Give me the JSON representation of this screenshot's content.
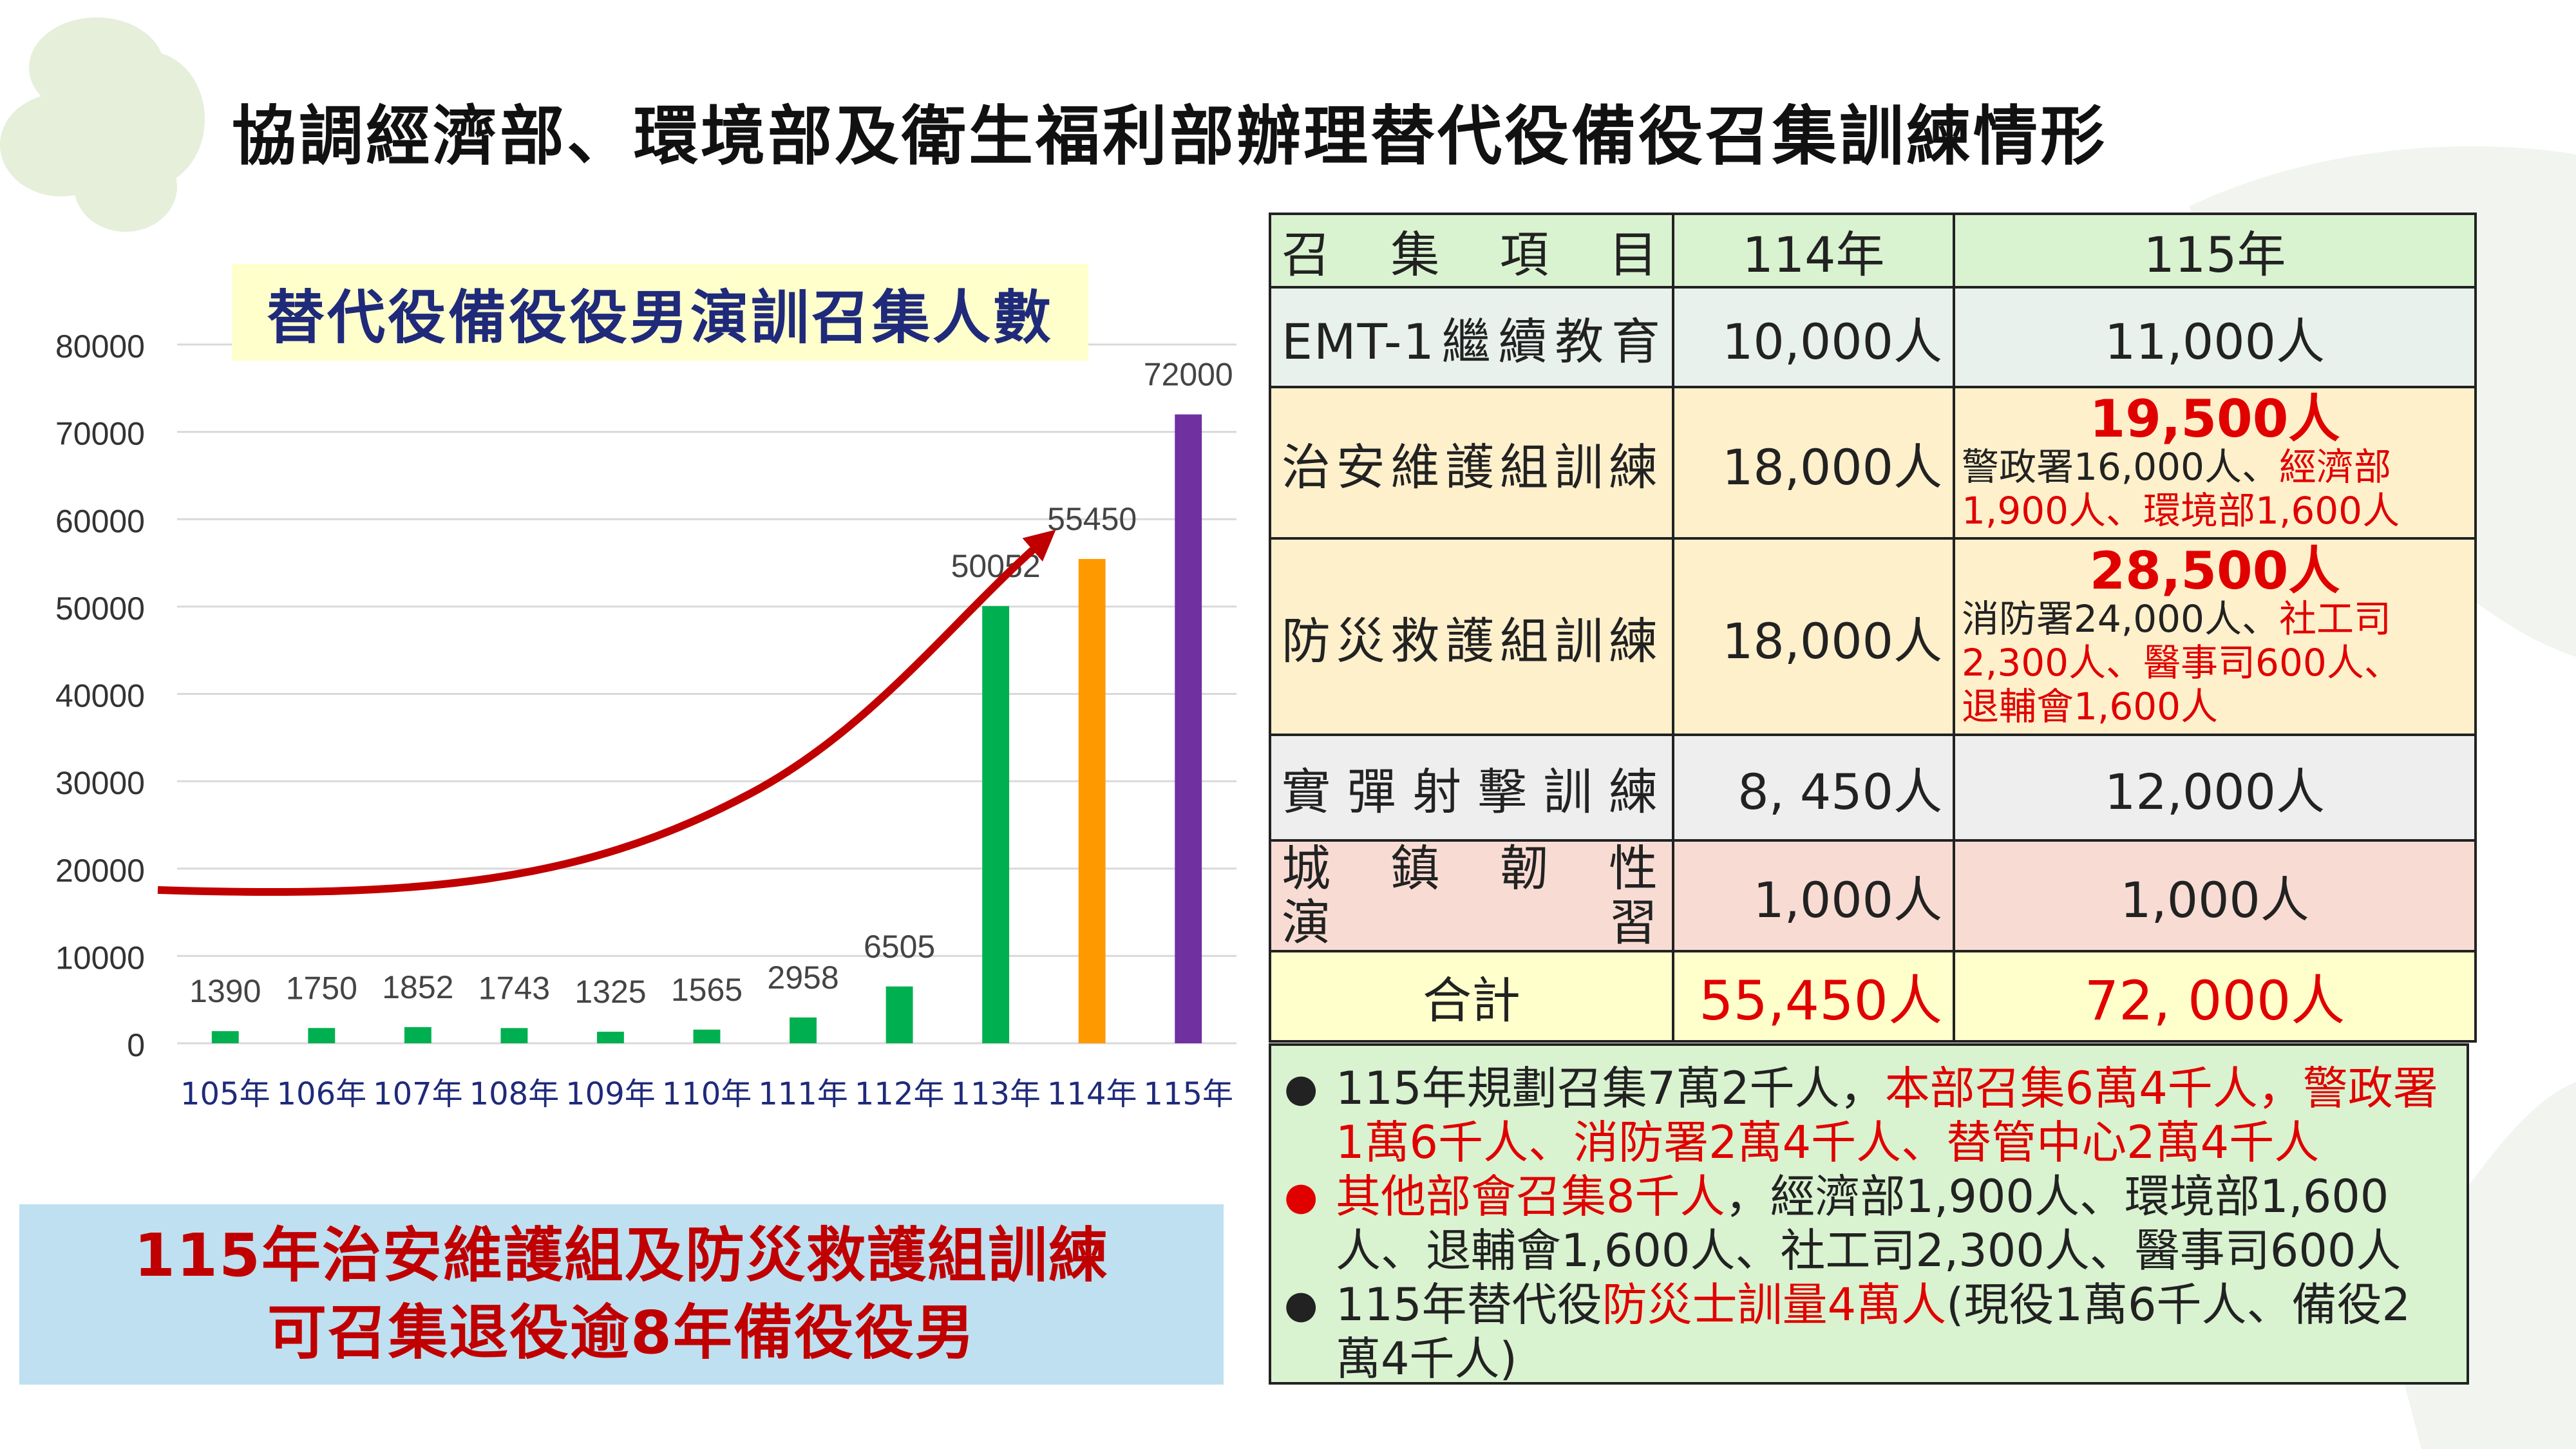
{
  "title": "協調經濟部、環境部及衛生福利部辦理替代役備役召集訓練情形",
  "chart_data": {
    "type": "bar",
    "title": "替代役備役役男演訓召集人數",
    "categories": [
      "105年",
      "106年",
      "107年",
      "108年",
      "109年",
      "110年",
      "111年",
      "112年",
      "113年",
      "114年",
      "115年"
    ],
    "values": [
      1390,
      1750,
      1852,
      1743,
      1325,
      1565,
      2958,
      6505,
      50052,
      55450,
      72000
    ],
    "bar_colors": [
      "#00b050",
      "#00b050",
      "#00b050",
      "#00b050",
      "#00b050",
      "#00b050",
      "#00b050",
      "#00b050",
      "#00b050",
      "#ff9900",
      "#7030a0"
    ],
    "ylim": [
      0,
      80000
    ],
    "yticks": [
      0,
      10000,
      20000,
      30000,
      40000,
      50000,
      60000,
      70000,
      80000
    ],
    "grid": true,
    "trend_arrow_color": "#c00000"
  },
  "summary": {
    "line1": "115年治安維護組及防災救護組訓練",
    "line2": "可召集退役逾8年備役役男"
  },
  "table": {
    "header": {
      "item": "召集項目",
      "y114": "114年",
      "y115": "115年"
    },
    "emt": {
      "item": "EMT-1繼續教育",
      "y114": "10,000人",
      "y115": "11,000人"
    },
    "law": {
      "item": "治安維護組訓練",
      "y114": "18,000人",
      "y115_total": "19,500人",
      "d1": "警政署16,000人、",
      "d2": "經濟部",
      "d3": "1,900人、環境部1,600人"
    },
    "disaster": {
      "item": "防災救護組訓練",
      "y114": "18,000人",
      "y115_total": "28,500人",
      "d1": "消防署24,000人、",
      "d2": "社工司",
      "d3": "2,300人、醫事司600人、",
      "d4": "退輔會1,600人"
    },
    "firing": {
      "item": "實彈射擊訓練",
      "y114": "8, 450人",
      "y115": "12,000人"
    },
    "urban": {
      "item_a": "城鎮韌性",
      "item_b": "演習",
      "y114": "1,000人",
      "y115": "1,000人"
    },
    "total": {
      "item": "合計",
      "y114": "55,450人",
      "y115": "72, 000人"
    }
  },
  "notes": {
    "n1a": "115年規劃召集7萬2千人，",
    "n1b": "本部召集6萬4千人，警政署1萬6千人、消防署2萬4千人、替管中心2萬4千人",
    "n2a": "其他部會召集8千人",
    "n2b": "，經濟部1,900人、環境部1,600人、退輔會1,600人、社工司2,300人、醫事司600人",
    "n3a": "115年替代役",
    "n3b": "防災士訓量4萬人",
    "n3c": "(現役1萬6千人、備役2萬4千人)"
  },
  "colors": {
    "accent_red": "#e00000",
    "title_blue": "#1f2a7a",
    "bar_green": "#00b050",
    "bar_orange": "#ff9900",
    "bar_purple": "#7030a0"
  }
}
